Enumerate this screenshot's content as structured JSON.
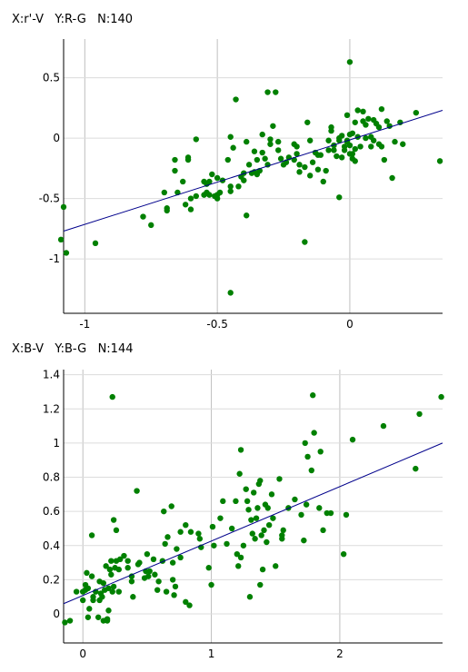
{
  "chart_data": [
    {
      "type": "scatter",
      "title": "X:r'-V   Y:R-G   N:140",
      "xlim": [
        -1.08,
        0.35
      ],
      "ylim": [
        -1.45,
        0.82
      ],
      "xticks": [
        -1,
        -0.5,
        0
      ],
      "xtick_labels": [
        "-1",
        "-0.5",
        "0"
      ],
      "yticks": [
        0.5,
        0,
        -0.5,
        -1
      ],
      "ytick_labels": [
        "0.5",
        "0",
        "-0.5",
        "-1"
      ],
      "grid": true,
      "point_color": "#008000",
      "fit_line_color": "#00008b",
      "fit_line": [
        [
          -1.08,
          -0.77
        ],
        [
          0.35,
          0.23
        ]
      ],
      "points": [
        [
          -1.08,
          -0.57
        ],
        [
          -1.09,
          -0.84
        ],
        [
          -1.07,
          -0.95
        ],
        [
          -0.96,
          -0.87
        ],
        [
          -0.78,
          -0.65
        ],
        [
          -0.75,
          -0.72
        ],
        [
          -0.7,
          -0.45
        ],
        [
          -0.69,
          -0.6
        ],
        [
          -0.69,
          -0.58
        ],
        [
          -0.66,
          -0.18
        ],
        [
          -0.66,
          -0.27
        ],
        [
          -0.65,
          -0.45
        ],
        [
          -0.63,
          -0.36
        ],
        [
          -0.61,
          -0.16
        ],
        [
          -0.61,
          -0.18
        ],
        [
          -0.6,
          -0.59
        ],
        [
          -0.6,
          -0.5
        ],
        [
          -0.58,
          -0.01
        ],
        [
          -0.55,
          -0.36
        ],
        [
          -0.55,
          -0.47
        ],
        [
          -0.54,
          -0.45
        ],
        [
          -0.54,
          -0.38
        ],
        [
          -0.53,
          -0.47
        ],
        [
          -0.53,
          -0.36
        ],
        [
          -0.52,
          -0.3
        ],
        [
          -0.51,
          -0.48
        ],
        [
          -0.5,
          -0.47
        ],
        [
          -0.5,
          -0.33
        ],
        [
          -0.5,
          -0.5
        ],
        [
          -0.49,
          -0.45
        ],
        [
          -0.48,
          -0.35
        ],
        [
          -0.46,
          -0.18
        ],
        [
          -0.45,
          -0.4
        ],
        [
          -0.45,
          -0.44
        ],
        [
          -0.44,
          -0.08
        ],
        [
          -0.45,
          0.01
        ],
        [
          -0.43,
          0.32
        ],
        [
          -0.42,
          -0.4
        ],
        [
          -0.41,
          -0.32
        ],
        [
          -0.4,
          -0.29
        ],
        [
          -0.4,
          -0.35
        ],
        [
          -0.39,
          -0.03
        ],
        [
          -0.39,
          -0.64
        ],
        [
          -0.38,
          -0.22
        ],
        [
          -0.37,
          -0.29
        ],
        [
          -0.36,
          -0.11
        ],
        [
          -0.35,
          -0.3
        ],
        [
          -0.35,
          -0.18
        ],
        [
          -0.34,
          -0.27
        ],
        [
          -0.33,
          0.03
        ],
        [
          -0.33,
          -0.12
        ],
        [
          -0.32,
          -0.17
        ],
        [
          -0.31,
          -0.22
        ],
        [
          -0.31,
          0.38
        ],
        [
          -0.3,
          -0.01
        ],
        [
          -0.29,
          0.1
        ],
        [
          -0.28,
          0.38
        ],
        [
          -0.27,
          -0.1
        ],
        [
          -0.26,
          -0.17
        ],
        [
          -0.25,
          -0.22
        ],
        [
          -0.24,
          -0.2
        ],
        [
          -0.23,
          -0.16
        ],
        [
          -0.21,
          -0.18
        ],
        [
          -0.2,
          -0.13
        ],
        [
          -0.19,
          -0.22
        ],
        [
          -0.19,
          -0.28
        ],
        [
          -0.17,
          -0.24
        ],
        [
          -0.16,
          0.13
        ],
        [
          -0.15,
          -0.02
        ],
        [
          -0.14,
          -0.2
        ],
        [
          -0.13,
          -0.12
        ],
        [
          -0.12,
          -0.26
        ],
        [
          -0.11,
          -0.14
        ],
        [
          -0.09,
          -0.27
        ],
        [
          -0.08,
          -0.02
        ],
        [
          -0.07,
          0.09
        ],
        [
          -0.07,
          0.06
        ],
        [
          -0.06,
          -0.06
        ],
        [
          -0.06,
          -0.1
        ],
        [
          -0.05,
          -0.15
        ],
        [
          -0.04,
          0.0
        ],
        [
          -0.04,
          -0.02
        ],
        [
          -0.03,
          -0.16
        ],
        [
          -0.02,
          -0.07
        ],
        [
          -0.01,
          -0.03
        ],
        [
          -0.01,
          0.19
        ],
        [
          0.0,
          -0.06
        ],
        [
          0.0,
          -0.13
        ],
        [
          -0.04,
          -0.49
        ],
        [
          -0.17,
          -0.86
        ],
        [
          -0.45,
          -1.28
        ],
        [
          -0.03,
          0.02
        ],
        [
          -0.02,
          -0.1
        ],
        [
          -0.01,
          -0.02
        ],
        [
          0.0,
          0.03
        ],
        [
          0.0,
          0.63
        ],
        [
          0.01,
          -0.13
        ],
        [
          0.01,
          -0.17
        ],
        [
          0.01,
          0.04
        ],
        [
          0.02,
          -0.09
        ],
        [
          0.02,
          -0.19
        ],
        [
          0.02,
          0.13
        ],
        [
          0.03,
          0.23
        ],
        [
          0.03,
          0.01
        ],
        [
          0.04,
          -0.07
        ],
        [
          0.05,
          0.22
        ],
        [
          0.05,
          0.14
        ],
        [
          0.06,
          0.0
        ],
        [
          0.06,
          0.11
        ],
        [
          0.07,
          0.16
        ],
        [
          0.08,
          -0.07
        ],
        [
          0.08,
          0.01
        ],
        [
          0.09,
          -0.02
        ],
        [
          0.09,
          0.15
        ],
        [
          0.1,
          0.12
        ],
        [
          0.11,
          0.09
        ],
        [
          0.11,
          -0.05
        ],
        [
          0.12,
          0.24
        ],
        [
          0.12,
          -0.07
        ],
        [
          0.13,
          -0.18
        ],
        [
          0.14,
          0.14
        ],
        [
          0.15,
          0.1
        ],
        [
          0.16,
          -0.33
        ],
        [
          0.17,
          -0.03
        ],
        [
          0.19,
          0.13
        ],
        [
          0.2,
          -0.05
        ],
        [
          0.34,
          -0.19
        ],
        [
          -0.2,
          -0.07
        ],
        [
          -0.15,
          -0.31
        ],
        [
          -0.1,
          -0.36
        ],
        [
          -0.62,
          -0.55
        ],
        [
          -0.27,
          -0.03
        ],
        [
          -0.12,
          -0.14
        ],
        [
          -0.08,
          -0.1
        ],
        [
          -0.58,
          -0.48
        ],
        [
          -0.5,
          -0.47
        ],
        [
          -0.36,
          -0.28
        ],
        [
          0.25,
          0.21
        ],
        [
          -0.3,
          -0.05
        ],
        [
          -0.21,
          -0.05
        ]
      ]
    },
    {
      "type": "scatter",
      "title": "X:B-V   Y:B-G   N:144",
      "xlim": [
        -0.15,
        2.8
      ],
      "ylim": [
        -0.17,
        1.43
      ],
      "xticks": [
        0,
        1,
        2
      ],
      "xtick_labels": [
        "0",
        "1",
        "2"
      ],
      "yticks": [
        1.4,
        1.2,
        1,
        0.8,
        0.6,
        0.4,
        0.2,
        0
      ],
      "ytick_labels": [
        "1.4",
        "1.2",
        "1",
        "0.8",
        "0.6",
        "0.4",
        "0.2",
        "0"
      ],
      "grid": true,
      "point_color": "#008000",
      "fit_line_color": "#00008b",
      "fit_line": [
        [
          -0.15,
          0.06
        ],
        [
          2.8,
          1.0
        ]
      ],
      "points": [
        [
          -0.14,
          -0.05
        ],
        [
          -0.1,
          -0.04
        ],
        [
          -0.05,
          0.13
        ],
        [
          0.0,
          0.13
        ],
        [
          0.0,
          0.08
        ],
        [
          0.02,
          0.14
        ],
        [
          0.02,
          0.17
        ],
        [
          0.03,
          0.24
        ],
        [
          0.04,
          0.15
        ],
        [
          0.04,
          -0.02
        ],
        [
          0.05,
          0.03
        ],
        [
          0.07,
          0.22
        ],
        [
          0.07,
          0.46
        ],
        [
          0.08,
          0.1
        ],
        [
          0.08,
          0.08
        ],
        [
          0.1,
          0.13
        ],
        [
          0.12,
          -0.02
        ],
        [
          0.13,
          0.08
        ],
        [
          0.14,
          0.12
        ],
        [
          0.15,
          0.1
        ],
        [
          0.16,
          0.18
        ],
        [
          0.16,
          -0.04
        ],
        [
          0.17,
          0.14
        ],
        [
          0.18,
          0.28
        ],
        [
          0.19,
          -0.03
        ],
        [
          0.19,
          -0.04
        ],
        [
          0.2,
          0.15
        ],
        [
          0.2,
          0.02
        ],
        [
          0.21,
          0.26
        ],
        [
          0.22,
          0.31
        ],
        [
          0.22,
          0.23
        ],
        [
          0.23,
          0.13
        ],
        [
          0.23,
          1.27
        ],
        [
          0.24,
          0.55
        ],
        [
          0.25,
          0.27
        ],
        [
          0.26,
          0.31
        ],
        [
          0.26,
          0.49
        ],
        [
          0.28,
          0.26
        ],
        [
          0.28,
          0.13
        ],
        [
          0.29,
          0.32
        ],
        [
          0.32,
          0.34
        ],
        [
          0.35,
          0.31
        ],
        [
          0.38,
          0.19
        ],
        [
          0.38,
          0.22
        ],
        [
          0.39,
          0.1
        ],
        [
          0.42,
          0.72
        ],
        [
          0.43,
          0.29
        ],
        [
          0.44,
          0.3
        ],
        [
          0.48,
          0.21
        ],
        [
          0.49,
          0.25
        ],
        [
          0.5,
          0.35
        ],
        [
          0.51,
          0.22
        ],
        [
          0.52,
          0.25
        ],
        [
          0.55,
          0.32
        ],
        [
          0.56,
          0.23
        ],
        [
          0.58,
          0.14
        ],
        [
          0.62,
          0.31
        ],
        [
          0.63,
          0.6
        ],
        [
          0.64,
          0.41
        ],
        [
          0.65,
          0.13
        ],
        [
          0.66,
          0.45
        ],
        [
          0.69,
          0.63
        ],
        [
          0.7,
          0.3
        ],
        [
          0.71,
          0.11
        ],
        [
          0.72,
          0.16
        ],
        [
          0.73,
          0.38
        ],
        [
          0.76,
          0.33
        ],
        [
          0.76,
          0.48
        ],
        [
          0.8,
          0.07
        ],
        [
          0.8,
          0.52
        ],
        [
          0.83,
          0.05
        ],
        [
          0.84,
          0.48
        ],
        [
          0.91,
          0.44
        ],
        [
          0.92,
          0.39
        ],
        [
          0.98,
          0.27
        ],
        [
          1.0,
          0.17
        ],
        [
          1.01,
          0.51
        ],
        [
          1.02,
          0.4
        ],
        [
          1.07,
          0.56
        ],
        [
          1.09,
          0.66
        ],
        [
          1.16,
          0.5
        ],
        [
          1.19,
          0.66
        ],
        [
          1.2,
          0.35
        ],
        [
          1.21,
          0.28
        ],
        [
          1.22,
          0.82
        ],
        [
          1.23,
          0.96
        ],
        [
          1.23,
          0.33
        ],
        [
          1.25,
          0.4
        ],
        [
          1.27,
          0.73
        ],
        [
          1.28,
          0.66
        ],
        [
          1.29,
          0.61
        ],
        [
          1.3,
          0.1
        ],
        [
          1.31,
          0.55
        ],
        [
          1.32,
          0.47
        ],
        [
          1.33,
          0.71
        ],
        [
          1.34,
          0.44
        ],
        [
          1.35,
          0.56
        ],
        [
          1.36,
          0.62
        ],
        [
          1.37,
          0.76
        ],
        [
          1.38,
          0.78
        ],
        [
          1.38,
          0.17
        ],
        [
          1.39,
          0.46
        ],
        [
          1.4,
          0.26
        ],
        [
          1.41,
          0.49
        ],
        [
          1.42,
          0.64
        ],
        [
          1.44,
          0.62
        ],
        [
          1.45,
          0.52
        ],
        [
          1.47,
          0.7
        ],
        [
          1.48,
          0.56
        ],
        [
          1.5,
          0.28
        ],
        [
          1.53,
          0.79
        ],
        [
          1.55,
          0.46
        ],
        [
          1.56,
          0.49
        ],
        [
          1.6,
          0.62
        ],
        [
          1.65,
          0.67
        ],
        [
          1.7,
          0.58
        ],
        [
          1.72,
          0.43
        ],
        [
          1.73,
          1.0
        ],
        [
          1.74,
          0.64
        ],
        [
          1.75,
          0.92
        ],
        [
          1.78,
          0.84
        ],
        [
          1.79,
          1.28
        ],
        [
          1.8,
          1.06
        ],
        [
          1.84,
          0.62
        ],
        [
          1.85,
          0.95
        ],
        [
          1.87,
          0.49
        ],
        [
          1.9,
          0.59
        ],
        [
          1.93,
          0.59
        ],
        [
          2.03,
          0.35
        ],
        [
          2.05,
          0.58
        ],
        [
          2.1,
          1.02
        ],
        [
          2.34,
          1.1
        ],
        [
          2.59,
          0.85
        ],
        [
          2.62,
          1.17
        ],
        [
          2.79,
          1.27
        ],
        [
          0.59,
          0.19
        ],
        [
          1.12,
          0.41
        ],
        [
          0.35,
          0.27
        ],
        [
          0.13,
          0.19
        ],
        [
          0.9,
          0.47
        ],
        [
          1.43,
          0.42
        ],
        [
          0.24,
          0.16
        ],
        [
          0.7,
          0.2
        ],
        [
          1.55,
          0.44
        ]
      ]
    }
  ]
}
